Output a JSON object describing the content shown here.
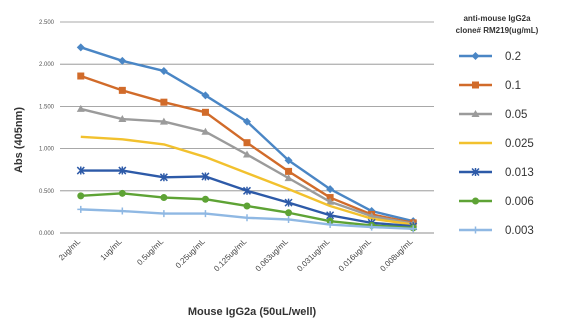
{
  "chart_data": {
    "type": "line",
    "categories": [
      "2ug/mL",
      "1ug/mL",
      "0.5ug/mL",
      "0.25ug/mL",
      "0.125ug/mL",
      "0.063ug/mL",
      "0.031ug/mL",
      "0.016ug/mL",
      "0.008ug/mL"
    ],
    "ylabel": "Abs (405nm)",
    "xlabel": "Mouse IgG2a (50uL/well)",
    "ylim": [
      0,
      2.5
    ],
    "yticks": [
      "0.000",
      "0.500",
      "1.000",
      "1.500",
      "2.000",
      "2.500"
    ],
    "grid": true,
    "legend_position": "right",
    "legend_title_line1": "anti-mouse IgG2a",
    "legend_title_line2": "clone# RM219(ug/mL)",
    "series": [
      {
        "name": "0.2",
        "color": "#4a86c5",
        "marker": "diamond",
        "values": [
          2.2,
          2.04,
          1.92,
          1.63,
          1.32,
          0.86,
          0.52,
          0.26,
          0.14
        ]
      },
      {
        "name": "0.1",
        "color": "#d16b2a",
        "marker": "square",
        "values": [
          1.86,
          1.69,
          1.55,
          1.43,
          1.07,
          0.73,
          0.42,
          0.22,
          0.12
        ]
      },
      {
        "name": "0.05",
        "color": "#9b9b9b",
        "marker": "triangle",
        "values": [
          1.47,
          1.35,
          1.32,
          1.2,
          0.93,
          0.65,
          0.37,
          0.2,
          0.11
        ]
      },
      {
        "name": "0.025",
        "color": "#f2c12e",
        "marker": "none",
        "values": [
          1.14,
          1.11,
          1.05,
          0.9,
          0.71,
          0.52,
          0.32,
          0.17,
          0.1
        ]
      },
      {
        "name": "0.013",
        "color": "#2d5aa8",
        "marker": "x",
        "values": [
          0.74,
          0.74,
          0.66,
          0.67,
          0.5,
          0.36,
          0.21,
          0.12,
          0.08
        ]
      },
      {
        "name": "0.006",
        "color": "#5ea335",
        "marker": "circle",
        "values": [
          0.44,
          0.47,
          0.42,
          0.4,
          0.32,
          0.24,
          0.14,
          0.09,
          0.06
        ]
      },
      {
        "name": "0.003",
        "color": "#8fb8e3",
        "marker": "plus",
        "values": [
          0.28,
          0.26,
          0.23,
          0.23,
          0.18,
          0.16,
          0.1,
          0.07,
          0.05
        ]
      }
    ]
  }
}
